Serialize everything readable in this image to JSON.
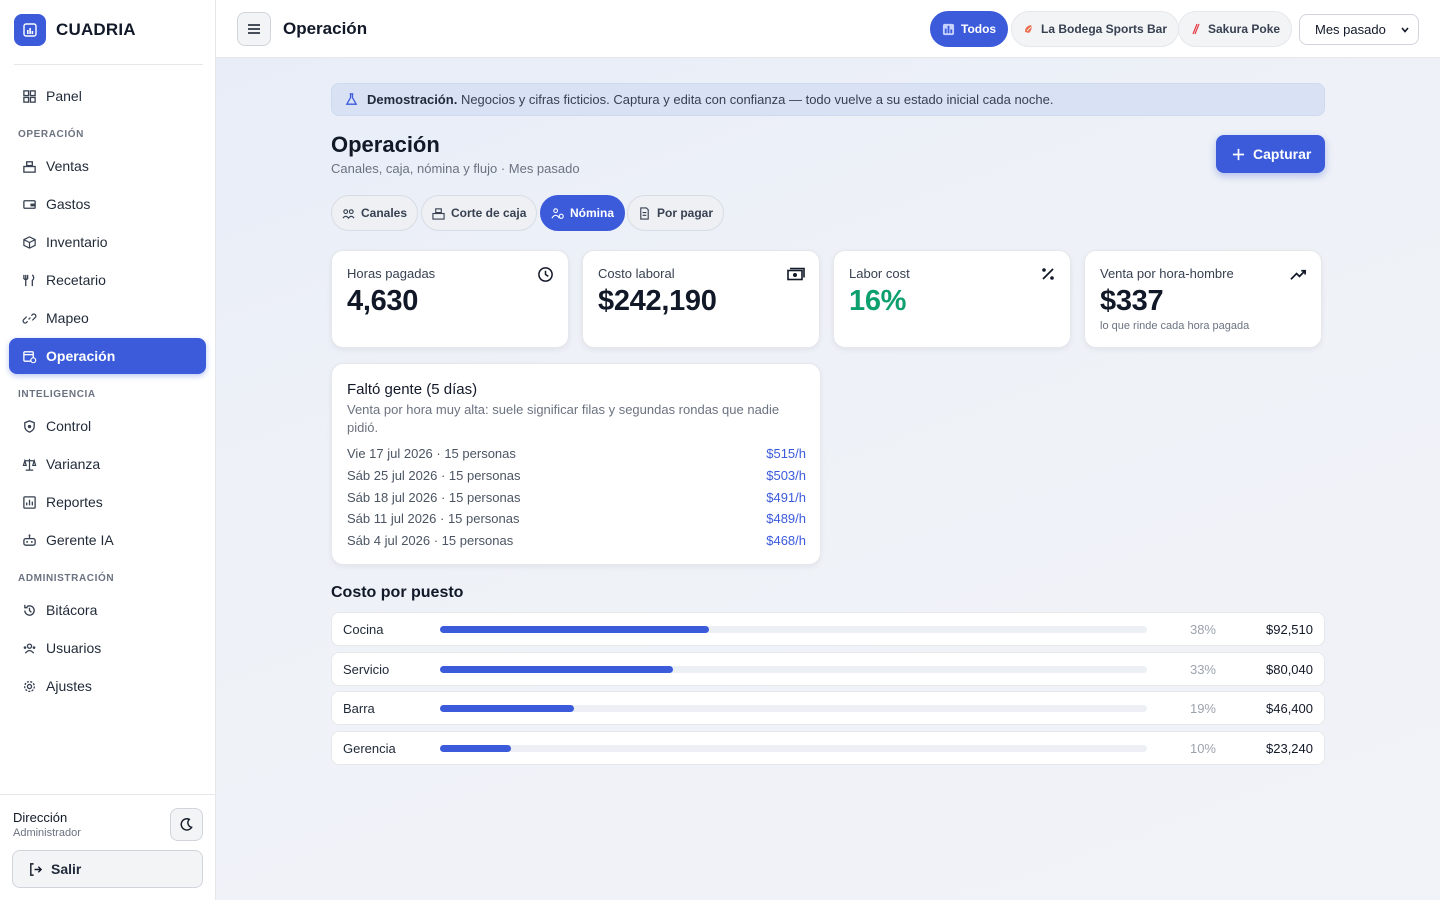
{
  "brand": {
    "name": "CUADRIA"
  },
  "sidebar": {
    "items_top": [
      {
        "label": "Panel",
        "icon": "grid-icon"
      }
    ],
    "sections": [
      {
        "title": "OPERACIÓN",
        "items": [
          {
            "label": "Ventas",
            "icon": "register-icon"
          },
          {
            "label": "Gastos",
            "icon": "wallet-icon"
          },
          {
            "label": "Inventario",
            "icon": "box-icon"
          },
          {
            "label": "Recetario",
            "icon": "utensils-icon"
          },
          {
            "label": "Mapeo",
            "icon": "link-icon"
          },
          {
            "label": "Operación",
            "icon": "operation-icon",
            "active": true
          }
        ]
      },
      {
        "title": "INTELIGENCIA",
        "items": [
          {
            "label": "Control",
            "icon": "shield-icon"
          },
          {
            "label": "Varianza",
            "icon": "scale-icon"
          },
          {
            "label": "Reportes",
            "icon": "report-icon"
          },
          {
            "label": "Gerente IA",
            "icon": "robot-icon"
          }
        ]
      },
      {
        "title": "ADMINISTRACIÓN",
        "items": [
          {
            "label": "Bitácora",
            "icon": "history-icon"
          },
          {
            "label": "Usuarios",
            "icon": "users-icon"
          },
          {
            "label": "Ajustes",
            "icon": "gear-icon"
          }
        ]
      }
    ],
    "user": {
      "name": "Dirección",
      "role": "Administrador"
    },
    "logout_label": "Salir"
  },
  "topbar": {
    "title": "Operación",
    "filters": [
      {
        "label": "Todos",
        "active": true
      },
      {
        "label": "La Bodega Sports Bar",
        "active": false
      },
      {
        "label": "Sakura Poke",
        "active": false
      }
    ],
    "period": "Mes pasado"
  },
  "banner": {
    "strong": "Demostración.",
    "text": "Negocios y cifras ficticios. Captura y edita con confianza — todo vuelve a su estado inicial cada noche."
  },
  "page": {
    "title": "Operación",
    "subtitle": "Canales, caja, nómina y flujo · Mes pasado",
    "capture_label": "Capturar",
    "tabs": [
      {
        "label": "Canales",
        "active": false
      },
      {
        "label": "Corte de caja",
        "active": false
      },
      {
        "label": "Nómina",
        "active": true
      },
      {
        "label": "Por pagar",
        "active": false
      }
    ]
  },
  "kpis": [
    {
      "label": "Horas pagadas",
      "value": "4,630",
      "icon": "clock-icon",
      "hint": ""
    },
    {
      "label": "Costo laboral",
      "value": "$242,190",
      "icon": "cash-icon",
      "hint": ""
    },
    {
      "label": "Labor cost",
      "value": "16%",
      "icon": "percent-icon",
      "hint": ""
    },
    {
      "label": "Venta por hora-hombre",
      "value": "$337",
      "icon": "trend-up-icon",
      "hint": "lo que rinde cada hora pagada"
    }
  ],
  "shortage": {
    "title": "Faltó gente (5 días)",
    "description": "Venta por hora muy alta: suele significar filas y segundas rondas que nadie pidió.",
    "rows": [
      {
        "day": "Vie 17 jul 2026 · 15 personas",
        "rate": "$515/h"
      },
      {
        "day": "Sáb 25 jul 2026 · 15 personas",
        "rate": "$503/h"
      },
      {
        "day": "Sáb 18 jul 2026 · 15 personas",
        "rate": "$491/h"
      },
      {
        "day": "Sáb 11 jul 2026 · 15 personas",
        "rate": "$489/h"
      },
      {
        "day": "Sáb 4 jul 2026 · 15 personas",
        "rate": "$468/h"
      }
    ]
  },
  "cost_by_role": {
    "title": "Costo por puesto",
    "rows": [
      {
        "name": "Cocina",
        "pct": "38%",
        "share": 0.38,
        "amount": "$92,510"
      },
      {
        "name": "Servicio",
        "pct": "33%",
        "share": 0.33,
        "amount": "$80,040"
      },
      {
        "name": "Barra",
        "pct": "19%",
        "share": 0.19,
        "amount": "$46,400"
      },
      {
        "name": "Gerencia",
        "pct": "10%",
        "share": 0.1,
        "amount": "$23,240"
      }
    ]
  },
  "colors": {
    "accent": "#3b5bdb",
    "positive": "#0e9f6e",
    "muted": "#6b7280"
  }
}
